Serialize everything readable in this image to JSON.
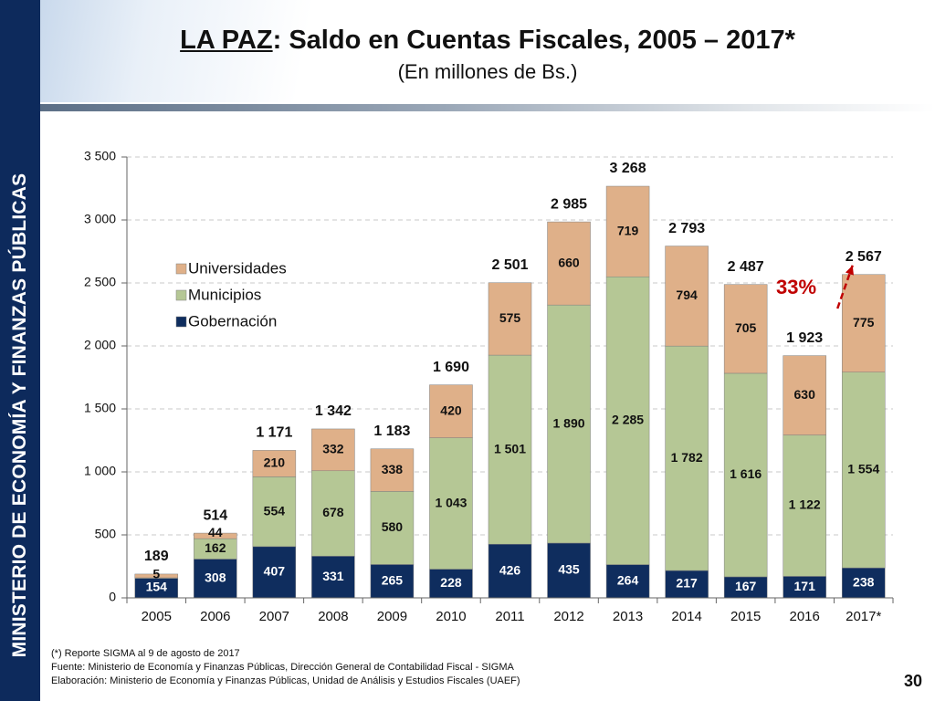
{
  "sidebar": {
    "text": "MINISTERIO DE ECONOMÍA Y FINANZAS PÚBLICAS"
  },
  "header": {
    "title_underlined": "LA PAZ",
    "title_rest": ": Saldo en Cuentas Fiscales, 2005 – 2017*",
    "subtitle": "(En millones de Bs.)"
  },
  "footnotes": [
    "(*) Reporte SIGMA al 9 de agosto de 2017",
    "Fuente: Ministerio de Economía y Finanzas Públicas, Dirección General  de Contabilidad Fiscal - SIGMA",
    "Elaboración: Ministerio de Economía y Finanzas Públicas, Unidad de Análisis y Estudios Fiscales (UAEF)"
  ],
  "page_number": "30",
  "chart_data": {
    "type": "bar",
    "stacked": true,
    "categories": [
      "2005",
      "2006",
      "2007",
      "2008",
      "2009",
      "2010",
      "2011",
      "2012",
      "2013",
      "2014",
      "2015",
      "2016",
      "2017*"
    ],
    "series": [
      {
        "name": "Gobernación",
        "color": "#0f2d5e",
        "values": [
          154,
          308,
          407,
          331,
          265,
          228,
          426,
          435,
          264,
          217,
          167,
          171,
          238
        ]
      },
      {
        "name": "Municipios",
        "color": "#b5c795",
        "values": [
          5,
          162,
          554,
          678,
          580,
          1043,
          1501,
          1890,
          2285,
          1782,
          1616,
          1122,
          1554
        ]
      },
      {
        "name": "Universidades",
        "color": "#dfb089",
        "values": [
          30,
          44,
          210,
          332,
          338,
          420,
          575,
          660,
          719,
          794,
          705,
          630,
          775
        ]
      }
    ],
    "totals": [
      189,
      514,
      1171,
      1342,
      1183,
      1690,
      2501,
      2985,
      3268,
      2793,
      2487,
      1923,
      2567
    ],
    "segment_labels": [
      [
        "154",
        "308",
        "407",
        "331",
        "265",
        "228",
        "426",
        "435",
        "264",
        "217",
        "167",
        "171",
        "238"
      ],
      [
        "5",
        "162",
        "554",
        "678",
        "580",
        "1 043",
        "1 501",
        "1 890",
        "2 285",
        "1 782",
        "1 616",
        "1 122",
        "1 554"
      ],
      [
        "",
        "44",
        "210",
        "332",
        "338",
        "420",
        "575",
        "660",
        "719",
        "794",
        "705",
        "630",
        "775"
      ]
    ],
    "total_labels": [
      "189",
      "514",
      "1 171",
      "1 342",
      "1 183",
      "1 690",
      "2 501",
      "2 985",
      "3 268",
      "2 793",
      "2 487",
      "1 923",
      "2 567"
    ],
    "y_ticks": [
      0,
      500,
      1000,
      1500,
      2000,
      2500,
      3000,
      3500
    ],
    "y_tick_labels": [
      "0",
      "500",
      "1 000",
      "1 500",
      "2 000",
      "2 500",
      "3 000",
      "3 500"
    ],
    "ylim": [
      0,
      3500
    ],
    "grid": true,
    "legend_position": "upper-left",
    "legend_order": [
      "Universidades",
      "Municipios",
      "Gobernación"
    ],
    "annotation": {
      "text": "33%",
      "color": "#c00000"
    }
  }
}
